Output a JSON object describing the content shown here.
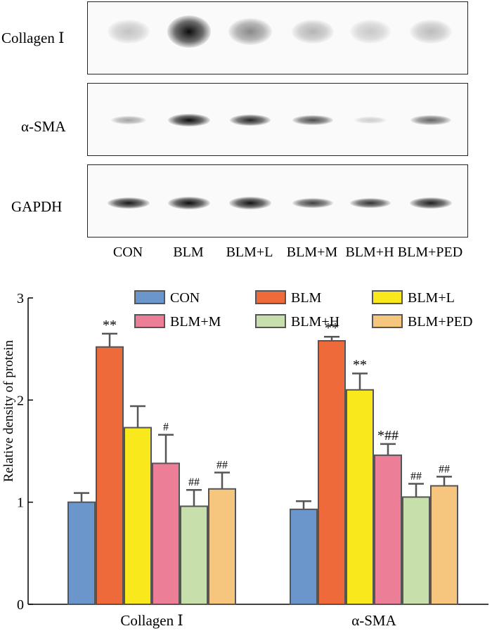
{
  "blot": {
    "rows": [
      {
        "label": "Collagen Ⅰ"
      },
      {
        "label": "α-SMA"
      },
      {
        "label": "GAPDH"
      }
    ],
    "lanes": [
      "CON",
      "BLM",
      "BLM+L",
      "BLM+M",
      "BLM+H",
      "BLM+PED"
    ]
  },
  "chart_data": {
    "type": "bar",
    "categories": [
      "Collagen Ⅰ",
      "α-SMA"
    ],
    "ylabel": "Relative density of protein",
    "xlabel": "",
    "ylim": [
      0,
      3
    ],
    "yticks": [
      "0",
      "1",
      "2",
      "3"
    ],
    "grid": false,
    "legend_position": "top",
    "series": [
      {
        "name": "CON",
        "color": "#6a96cc",
        "values": [
          1.0,
          0.93
        ],
        "errors": [
          0.09,
          0.08
        ],
        "labels": [
          "",
          ""
        ]
      },
      {
        "name": "BLM",
        "color": "#ef6a3b",
        "values": [
          2.52,
          2.58
        ],
        "errors": [
          0.13,
          0.04
        ],
        "labels": [
          "**",
          "**"
        ]
      },
      {
        "name": "BLM+L",
        "color": "#f8e81c",
        "values": [
          1.73,
          2.1
        ],
        "errors": [
          0.21,
          0.16
        ],
        "labels": [
          "",
          "**"
        ]
      },
      {
        "name": "BLM+M",
        "color": "#ec7f97",
        "values": [
          1.38,
          1.46
        ],
        "errors": [
          0.28,
          0.11
        ],
        "labels": [
          "#",
          "*##"
        ]
      },
      {
        "name": "BLM+H",
        "color": "#c7dfaa",
        "values": [
          0.96,
          1.05
        ],
        "errors": [
          0.16,
          0.13
        ],
        "labels": [
          "##",
          "##"
        ]
      },
      {
        "name": "BLM+PED",
        "color": "#f7c67e",
        "values": [
          1.13,
          1.16
        ],
        "errors": [
          0.16,
          0.09
        ],
        "labels": [
          "##",
          "##"
        ]
      }
    ]
  }
}
